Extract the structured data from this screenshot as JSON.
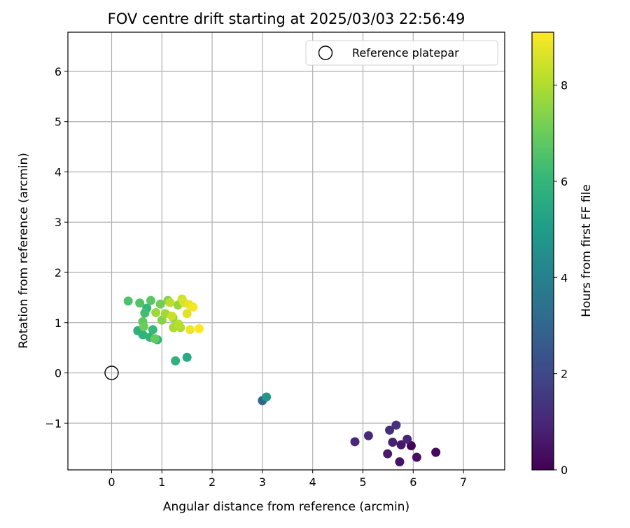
{
  "chart_data": {
    "type": "scatter",
    "title": "FOV centre drift starting at 2025/03/03 22:56:49",
    "xlabel": "Angular distance from reference (arcmin)",
    "ylabel": "Rotation from reference (arcmin)",
    "xlim": [
      -0.87,
      7.82
    ],
    "ylim": [
      -1.93,
      6.78
    ],
    "xticks": [
      0,
      1,
      2,
      3,
      4,
      5,
      6,
      7
    ],
    "yticks": [
      -1,
      0,
      1,
      2,
      3,
      4,
      5,
      6
    ],
    "xtick_labels": [
      "0",
      "1",
      "2",
      "3",
      "4",
      "5",
      "6",
      "7"
    ],
    "ytick_labels": [
      "−1",
      "0",
      "1",
      "2",
      "3",
      "4",
      "5",
      "6"
    ],
    "grid": true,
    "legend": {
      "placement": "top-right",
      "entries": [
        "Reference platepar"
      ]
    },
    "reference_point": {
      "name": "Reference platepar",
      "x": 0.0,
      "y": 0.0
    },
    "colorbar": {
      "label": "Hours from first FF file",
      "range": [
        0,
        9.1
      ],
      "ticks": [
        0,
        2,
        4,
        6,
        8
      ],
      "tick_labels": [
        "0",
        "2",
        "4",
        "6",
        "8"
      ],
      "colormap": "viridis"
    },
    "points": [
      {
        "x": 5.96,
        "y": -1.45,
        "t": 0.1
      },
      {
        "x": 6.45,
        "y": -1.58,
        "t": 0.2
      },
      {
        "x": 6.07,
        "y": -1.68,
        "t": 0.4
      },
      {
        "x": 5.73,
        "y": -1.77,
        "t": 0.5
      },
      {
        "x": 5.76,
        "y": -1.43,
        "t": 0.6
      },
      {
        "x": 5.49,
        "y": -1.61,
        "t": 0.7
      },
      {
        "x": 5.59,
        "y": -1.38,
        "t": 0.8
      },
      {
        "x": 5.88,
        "y": -1.32,
        "t": 0.9
      },
      {
        "x": 4.84,
        "y": -1.37,
        "t": 1.0
      },
      {
        "x": 5.11,
        "y": -1.25,
        "t": 1.1
      },
      {
        "x": 5.53,
        "y": -1.14,
        "t": 1.2
      },
      {
        "x": 5.66,
        "y": -1.04,
        "t": 1.3
      },
      {
        "x": 3.0,
        "y": -0.55,
        "t": 2.9
      },
      {
        "x": 3.08,
        "y": -0.48,
        "t": 4.8
      },
      {
        "x": 1.5,
        "y": 0.31,
        "t": 5.5
      },
      {
        "x": 1.27,
        "y": 0.24,
        "t": 5.8
      },
      {
        "x": 0.52,
        "y": 0.84,
        "t": 5.8
      },
      {
        "x": 0.62,
        "y": 0.76,
        "t": 5.9
      },
      {
        "x": 0.76,
        "y": 0.71,
        "t": 5.9
      },
      {
        "x": 0.91,
        "y": 0.66,
        "t": 6.0
      },
      {
        "x": 0.7,
        "y": 1.29,
        "t": 6.0
      },
      {
        "x": 0.82,
        "y": 0.86,
        "t": 6.1
      },
      {
        "x": 0.66,
        "y": 1.19,
        "t": 6.3
      },
      {
        "x": 0.33,
        "y": 1.43,
        "t": 6.5
      },
      {
        "x": 0.56,
        "y": 1.39,
        "t": 6.6
      },
      {
        "x": 0.78,
        "y": 1.44,
        "t": 6.7
      },
      {
        "x": 0.62,
        "y": 1.02,
        "t": 6.8
      },
      {
        "x": 0.86,
        "y": 0.68,
        "t": 6.9
      },
      {
        "x": 0.64,
        "y": 0.92,
        "t": 7.0
      },
      {
        "x": 0.97,
        "y": 1.37,
        "t": 7.1
      },
      {
        "x": 1.12,
        "y": 1.44,
        "t": 7.3
      },
      {
        "x": 1.0,
        "y": 1.05,
        "t": 7.4
      },
      {
        "x": 1.22,
        "y": 1.1,
        "t": 7.5
      },
      {
        "x": 1.32,
        "y": 1.35,
        "t": 7.6
      },
      {
        "x": 0.88,
        "y": 1.2,
        "t": 7.7
      },
      {
        "x": 1.07,
        "y": 1.18,
        "t": 7.8
      },
      {
        "x": 1.23,
        "y": 0.9,
        "t": 7.9
      },
      {
        "x": 1.37,
        "y": 0.9,
        "t": 8.0
      },
      {
        "x": 1.33,
        "y": 0.97,
        "t": 8.1
      },
      {
        "x": 1.16,
        "y": 1.4,
        "t": 8.2
      },
      {
        "x": 1.2,
        "y": 1.13,
        "t": 8.4
      },
      {
        "x": 1.4,
        "y": 1.47,
        "t": 8.5
      },
      {
        "x": 1.44,
        "y": 1.4,
        "t": 8.6
      },
      {
        "x": 1.5,
        "y": 1.18,
        "t": 8.7
      },
      {
        "x": 1.54,
        "y": 1.36,
        "t": 8.8
      },
      {
        "x": 1.56,
        "y": 0.86,
        "t": 8.9
      },
      {
        "x": 1.62,
        "y": 1.31,
        "t": 9.0
      },
      {
        "x": 1.74,
        "y": 0.88,
        "t": 9.1
      }
    ]
  }
}
